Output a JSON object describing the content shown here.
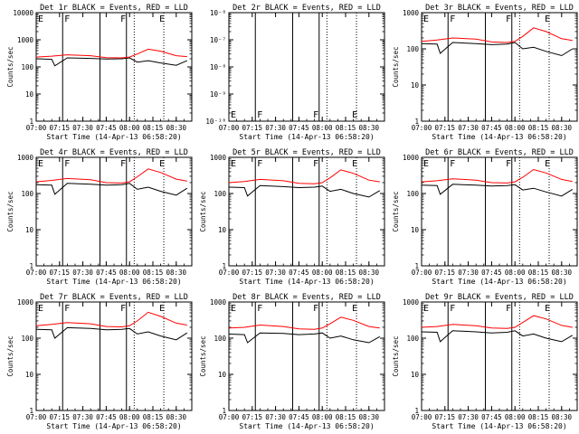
{
  "colors": {
    "events": "#000000",
    "lld": "#ff0000",
    "axes": "#000000",
    "background": "#ffffff"
  },
  "chart_data": [
    {
      "type": "line",
      "title": "Det 1r BLACK = Events, RED = LLD",
      "xlabel": "Start Time (14-Apr-13 06:58:20)",
      "ylabel": "Counts/sec",
      "yscale": "log",
      "ylim": [
        1,
        10000
      ],
      "yticks": [
        "1",
        "10",
        "100",
        "1000",
        "10000"
      ],
      "xlim": [
        "07:00",
        "08:40"
      ],
      "xticks": [
        "07:00",
        "07:15",
        "07:30",
        "07:45",
        "08:00",
        "08:15",
        "08:30"
      ],
      "markers": [
        {
          "label": "E",
          "x": "07:00"
        },
        {
          "label": "F",
          "x": "07:17"
        },
        {
          "label": "F",
          "x": "07:53"
        },
        {
          "label": "E",
          "x": "08:18"
        }
      ],
      "solid_vlines": [
        "07:17",
        "07:41",
        "07:58"
      ],
      "dotted_vlines": [
        "08:03",
        "08:22"
      ],
      "series": [
        {
          "name": "Events",
          "x": [
            "07:00",
            "07:10",
            "07:12",
            "07:20",
            "07:35",
            "07:45",
            "07:55",
            "08:00",
            "08:05",
            "08:12",
            "08:20",
            "08:30",
            "08:37"
          ],
          "values": [
            200,
            190,
            110,
            215,
            205,
            195,
            200,
            215,
            150,
            170,
            140,
            115,
            170
          ]
        },
        {
          "name": "LLD",
          "x": [
            "07:00",
            "07:10",
            "07:20",
            "07:35",
            "07:45",
            "07:55",
            "08:00",
            "08:05",
            "08:12",
            "08:20",
            "08:30",
            "08:37"
          ],
          "values": [
            230,
            250,
            280,
            260,
            220,
            215,
            230,
            300,
            450,
            380,
            260,
            240
          ]
        }
      ]
    },
    {
      "type": "line",
      "title": "Det 2r BLACK = Events, RED = LLD",
      "xlabel": "Start Time (14-Apr-13 06:58:20)",
      "ylabel": "",
      "yscale": "log",
      "ylim": [
        1e-10,
        1e-06
      ],
      "yticks": [
        "10⁻¹⁰",
        "10⁻⁹",
        "10⁻⁸",
        "10⁻⁷",
        "10⁻⁶"
      ],
      "xlim": [
        "07:00",
        "08:40"
      ],
      "xticks": [
        "07:00",
        "07:15",
        "07:30",
        "07:45",
        "08:00",
        "08:15",
        "08:30"
      ],
      "markers": [
        {
          "label": "E",
          "x": "07:00"
        },
        {
          "label": "F",
          "x": "07:17"
        },
        {
          "label": "F",
          "x": "07:53"
        },
        {
          "label": "E",
          "x": "08:18"
        }
      ],
      "solid_vlines": [
        "07:17",
        "07:41",
        "07:58"
      ],
      "dotted_vlines": [
        "08:03",
        "08:22"
      ],
      "series": []
    },
    {
      "type": "line",
      "title": "Det 3r BLACK = Events, RED = LLD",
      "xlabel": "Start Time (14-Apr-13 06:58:20)",
      "ylabel": "Counts/sec",
      "yscale": "log",
      "ylim": [
        1,
        1000
      ],
      "yticks": [
        "1",
        "10",
        "100",
        "1000"
      ],
      "xlim": [
        "07:00",
        "08:40"
      ],
      "xticks": [
        "07:00",
        "07:15",
        "07:30",
        "07:45",
        "08:00",
        "08:15",
        "08:30"
      ],
      "markers": [
        {
          "label": "E",
          "x": "07:00"
        },
        {
          "label": "F",
          "x": "07:17"
        },
        {
          "label": "F",
          "x": "07:53"
        },
        {
          "label": "E",
          "x": "08:18"
        }
      ],
      "solid_vlines": [
        "07:17",
        "07:41",
        "07:58"
      ],
      "dotted_vlines": [
        "08:03",
        "08:22"
      ],
      "series": [
        {
          "name": "Events",
          "x": [
            "07:00",
            "07:10",
            "07:12",
            "07:20",
            "07:35",
            "07:45",
            "07:55",
            "08:00",
            "08:05",
            "08:12",
            "08:20",
            "08:30",
            "08:37"
          ],
          "values": [
            140,
            135,
            75,
            150,
            140,
            130,
            135,
            150,
            100,
            110,
            85,
            65,
            100
          ]
        },
        {
          "name": "LLD",
          "x": [
            "07:00",
            "07:10",
            "07:20",
            "07:35",
            "07:45",
            "07:55",
            "08:00",
            "08:05",
            "08:12",
            "08:20",
            "08:30",
            "08:37"
          ],
          "values": [
            160,
            175,
            200,
            185,
            155,
            150,
            160,
            220,
            380,
            300,
            190,
            170
          ]
        }
      ]
    },
    {
      "type": "line",
      "title": "Det 4r BLACK = Events, RED = LLD",
      "xlabel": "Start Time (14-Apr-13 06:58:20)",
      "ylabel": "Counts/sec",
      "yscale": "log",
      "ylim": [
        1,
        1000
      ],
      "yticks": [
        "1",
        "10",
        "100",
        "1000"
      ],
      "xlim": [
        "07:00",
        "08:40"
      ],
      "xticks": [
        "07:00",
        "07:15",
        "07:30",
        "07:45",
        "08:00",
        "08:15",
        "08:30"
      ],
      "markers": [
        {
          "label": "E",
          "x": "07:00"
        },
        {
          "label": "F",
          "x": "07:17"
        },
        {
          "label": "F",
          "x": "07:53"
        },
        {
          "label": "E",
          "x": "08:18"
        }
      ],
      "solid_vlines": [
        "07:17",
        "07:41",
        "07:58"
      ],
      "dotted_vlines": [
        "08:03",
        "08:22"
      ],
      "series": [
        {
          "name": "Events",
          "x": [
            "07:00",
            "07:10",
            "07:12",
            "07:20",
            "07:35",
            "07:45",
            "07:55",
            "08:00",
            "08:05",
            "08:12",
            "08:20",
            "08:30",
            "08:37"
          ],
          "values": [
            175,
            170,
            95,
            190,
            180,
            170,
            175,
            190,
            130,
            150,
            115,
            90,
            140
          ]
        },
        {
          "name": "LLD",
          "x": [
            "07:00",
            "07:10",
            "07:20",
            "07:35",
            "07:45",
            "07:55",
            "08:00",
            "08:05",
            "08:12",
            "08:20",
            "08:30",
            "08:37"
          ],
          "values": [
            210,
            230,
            260,
            240,
            200,
            195,
            210,
            290,
            480,
            380,
            250,
            220
          ]
        }
      ]
    },
    {
      "type": "line",
      "title": "Det 5r BLACK = Events, RED = LLD",
      "xlabel": "Start Time (14-Apr-13 06:58:20)",
      "ylabel": "Counts/sec",
      "yscale": "log",
      "ylim": [
        1,
        1000
      ],
      "yticks": [
        "1",
        "10",
        "100",
        "1000"
      ],
      "xlim": [
        "07:00",
        "08:40"
      ],
      "xticks": [
        "07:00",
        "07:15",
        "07:30",
        "07:45",
        "08:00",
        "08:15",
        "08:30"
      ],
      "markers": [
        {
          "label": "E",
          "x": "07:00"
        },
        {
          "label": "F",
          "x": "07:17"
        },
        {
          "label": "F",
          "x": "07:53"
        },
        {
          "label": "E",
          "x": "08:18"
        }
      ],
      "solid_vlines": [
        "07:17",
        "07:41",
        "07:58"
      ],
      "dotted_vlines": [
        "08:03",
        "08:22"
      ],
      "series": [
        {
          "name": "Events",
          "x": [
            "07:00",
            "07:10",
            "07:12",
            "07:20",
            "07:35",
            "07:45",
            "07:55",
            "08:00",
            "08:05",
            "08:12",
            "08:20",
            "08:30",
            "08:37"
          ],
          "values": [
            150,
            145,
            85,
            165,
            155,
            145,
            150,
            160,
            115,
            130,
            100,
            80,
            120
          ]
        },
        {
          "name": "LLD",
          "x": [
            "07:00",
            "07:10",
            "07:20",
            "07:35",
            "07:45",
            "07:55",
            "08:00",
            "08:05",
            "08:12",
            "08:20",
            "08:30",
            "08:37"
          ],
          "values": [
            200,
            215,
            245,
            225,
            190,
            185,
            200,
            270,
            450,
            360,
            235,
            210
          ]
        }
      ]
    },
    {
      "type": "line",
      "title": "Det 6r BLACK = Events, RED = LLD",
      "xlabel": "Start Time (14-Apr-13 06:58:20)",
      "ylabel": "Counts/sec",
      "yscale": "log",
      "ylim": [
        1,
        1000
      ],
      "yticks": [
        "1",
        "10",
        "100",
        "1000"
      ],
      "xlim": [
        "07:00",
        "08:40"
      ],
      "xticks": [
        "07:00",
        "07:15",
        "07:30",
        "07:45",
        "08:00",
        "08:15",
        "08:30"
      ],
      "markers": [
        {
          "label": "E",
          "x": "07:00"
        },
        {
          "label": "F",
          "x": "07:17"
        },
        {
          "label": "F",
          "x": "07:53"
        },
        {
          "label": "E",
          "x": "08:18"
        }
      ],
      "solid_vlines": [
        "07:17",
        "07:41",
        "07:58"
      ],
      "dotted_vlines": [
        "08:03",
        "08:22"
      ],
      "series": [
        {
          "name": "Events",
          "x": [
            "07:00",
            "07:10",
            "07:12",
            "07:20",
            "07:35",
            "07:45",
            "07:55",
            "08:00",
            "08:05",
            "08:12",
            "08:20",
            "08:30",
            "08:37"
          ],
          "values": [
            170,
            165,
            95,
            180,
            170,
            160,
            165,
            175,
            125,
            140,
            110,
            85,
            130
          ]
        },
        {
          "name": "LLD",
          "x": [
            "07:00",
            "07:10",
            "07:20",
            "07:35",
            "07:45",
            "07:55",
            "08:00",
            "08:05",
            "08:12",
            "08:20",
            "08:30",
            "08:37"
          ],
          "values": [
            210,
            225,
            255,
            235,
            200,
            195,
            210,
            280,
            460,
            370,
            245,
            215
          ]
        }
      ]
    },
    {
      "type": "line",
      "title": "Det 7r BLACK = Events, RED = LLD",
      "xlabel": "Start Time (14-Apr-13 06:58:20)",
      "ylabel": "Counts/sec",
      "yscale": "log",
      "ylim": [
        1,
        1000
      ],
      "yticks": [
        "1",
        "10",
        "100",
        "1000"
      ],
      "xlim": [
        "07:00",
        "08:40"
      ],
      "xticks": [
        "07:00",
        "07:15",
        "07:30",
        "07:45",
        "08:00",
        "08:15",
        "08:30"
      ],
      "markers": [
        {
          "label": "E",
          "x": "07:00"
        },
        {
          "label": "F",
          "x": "07:17"
        },
        {
          "label": "F",
          "x": "07:53"
        },
        {
          "label": "E",
          "x": "08:18"
        }
      ],
      "solid_vlines": [
        "07:17",
        "07:41",
        "07:58"
      ],
      "dotted_vlines": [
        "08:03",
        "08:22"
      ],
      "series": [
        {
          "name": "Events",
          "x": [
            "07:00",
            "07:10",
            "07:12",
            "07:20",
            "07:35",
            "07:45",
            "07:55",
            "08:00",
            "08:05",
            "08:12",
            "08:20",
            "08:30",
            "08:37"
          ],
          "values": [
            175,
            170,
            100,
            195,
            185,
            170,
            175,
            185,
            130,
            150,
            115,
            90,
            140
          ]
        },
        {
          "name": "LLD",
          "x": [
            "07:00",
            "07:10",
            "07:20",
            "07:35",
            "07:45",
            "07:55",
            "08:00",
            "08:05",
            "08:12",
            "08:20",
            "08:30",
            "08:37"
          ],
          "values": [
            220,
            240,
            270,
            250,
            210,
            205,
            220,
            300,
            520,
            400,
            260,
            230
          ]
        }
      ]
    },
    {
      "type": "line",
      "title": "Det 8r BLACK = Events, RED = LLD",
      "xlabel": "Start Time (14-Apr-13 06:58:20)",
      "ylabel": "Counts/sec",
      "yscale": "log",
      "ylim": [
        1,
        1000
      ],
      "yticks": [
        "1",
        "10",
        "100",
        "1000"
      ],
      "xlim": [
        "07:00",
        "08:40"
      ],
      "xticks": [
        "07:00",
        "07:15",
        "07:30",
        "07:45",
        "08:00",
        "08:15",
        "08:30"
      ],
      "markers": [
        {
          "label": "E",
          "x": "07:00"
        },
        {
          "label": "F",
          "x": "07:17"
        },
        {
          "label": "F",
          "x": "07:53"
        },
        {
          "label": "E",
          "x": "08:18"
        }
      ],
      "solid_vlines": [
        "07:17",
        "07:41",
        "07:58"
      ],
      "dotted_vlines": [
        "08:03",
        "08:22"
      ],
      "series": [
        {
          "name": "Events",
          "x": [
            "07:00",
            "07:10",
            "07:12",
            "07:20",
            "07:35",
            "07:45",
            "07:55",
            "08:00",
            "08:05",
            "08:12",
            "08:20",
            "08:30",
            "08:37"
          ],
          "values": [
            130,
            125,
            75,
            140,
            135,
            125,
            130,
            140,
            100,
            115,
            90,
            75,
            110
          ]
        },
        {
          "name": "LLD",
          "x": [
            "07:00",
            "07:10",
            "07:20",
            "07:35",
            "07:45",
            "07:55",
            "08:00",
            "08:05",
            "08:12",
            "08:20",
            "08:30",
            "08:37"
          ],
          "values": [
            190,
            200,
            230,
            210,
            180,
            175,
            190,
            250,
            380,
            310,
            210,
            190
          ]
        }
      ]
    },
    {
      "type": "line",
      "title": "Det 9r BLACK = Events, RED = LLD",
      "xlabel": "Start Time (14-Apr-13 06:58:20)",
      "ylabel": "Counts/sec",
      "yscale": "log",
      "ylim": [
        1,
        1000
      ],
      "yticks": [
        "1",
        "10",
        "100",
        "1000"
      ],
      "xlim": [
        "07:00",
        "08:40"
      ],
      "xticks": [
        "07:00",
        "07:15",
        "07:30",
        "07:45",
        "08:00",
        "08:15",
        "08:30"
      ],
      "markers": [
        {
          "label": "E",
          "x": "07:00"
        },
        {
          "label": "F",
          "x": "07:17"
        },
        {
          "label": "F",
          "x": "07:53"
        },
        {
          "label": "E",
          "x": "08:18"
        }
      ],
      "solid_vlines": [
        "07:17",
        "07:41",
        "07:58"
      ],
      "dotted_vlines": [
        "08:03",
        "08:22"
      ],
      "series": [
        {
          "name": "Events",
          "x": [
            "07:00",
            "07:10",
            "07:12",
            "07:20",
            "07:35",
            "07:45",
            "07:55",
            "08:00",
            "08:05",
            "08:12",
            "08:20",
            "08:30",
            "08:37"
          ],
          "values": [
            150,
            145,
            80,
            160,
            150,
            140,
            145,
            160,
            115,
            130,
            100,
            80,
            120
          ]
        },
        {
          "name": "LLD",
          "x": [
            "07:00",
            "07:10",
            "07:20",
            "07:35",
            "07:45",
            "07:55",
            "08:00",
            "08:05",
            "08:12",
            "08:20",
            "08:30",
            "08:37"
          ],
          "values": [
            200,
            210,
            240,
            220,
            190,
            185,
            200,
            270,
            420,
            340,
            225,
            200
          ]
        }
      ]
    }
  ]
}
